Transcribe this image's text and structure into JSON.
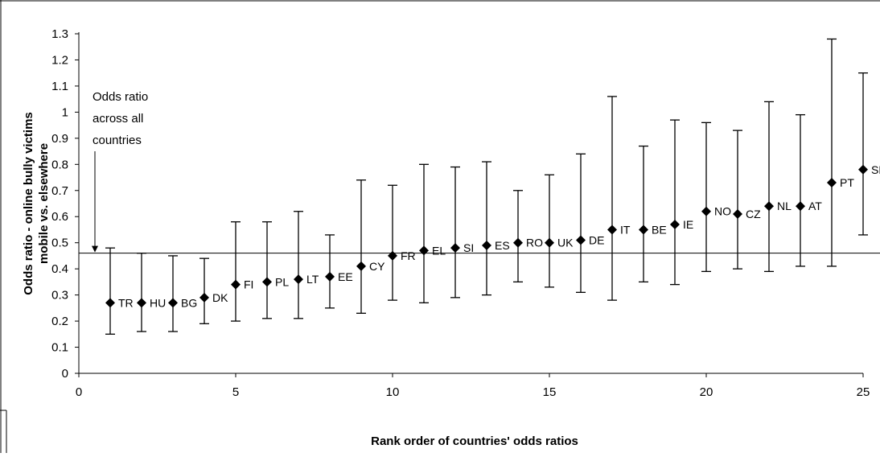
{
  "chart_data": {
    "type": "scatter",
    "title": "",
    "xlabel": "Rank order of countries' odds ratios",
    "ylabel_line1": "Odds ratio - online bully victims",
    "ylabel_line2": "mobile vs. elsewhere",
    "xlim": [
      0,
      25
    ],
    "ylim": [
      0,
      1.3
    ],
    "xticks": [
      "0",
      "5",
      "10",
      "15",
      "20",
      "25"
    ],
    "yticks": [
      "0",
      "0.1",
      "0.2",
      "0.3",
      "0.4",
      "0.5",
      "0.6",
      "0.7",
      "0.8",
      "0.9",
      "1",
      "1.1",
      "1.2",
      "1.3"
    ],
    "grid": false,
    "reference_line": 0.46,
    "annotation_lines": [
      "Odds ratio",
      "across all",
      "countries"
    ],
    "points": [
      {
        "rank": 1,
        "label": "TR",
        "value": 0.27,
        "low": 0.15,
        "high": 0.48
      },
      {
        "rank": 2,
        "label": "HU",
        "value": 0.27,
        "low": 0.16,
        "high": 0.46
      },
      {
        "rank": 3,
        "label": "BG",
        "value": 0.27,
        "low": 0.16,
        "high": 0.45
      },
      {
        "rank": 4,
        "label": "DK",
        "value": 0.29,
        "low": 0.19,
        "high": 0.44
      },
      {
        "rank": 5,
        "label": "FI",
        "value": 0.34,
        "low": 0.2,
        "high": 0.58
      },
      {
        "rank": 6,
        "label": "PL",
        "value": 0.35,
        "low": 0.21,
        "high": 0.58
      },
      {
        "rank": 7,
        "label": "LT",
        "value": 0.36,
        "low": 0.21,
        "high": 0.62
      },
      {
        "rank": 8,
        "label": "EE",
        "value": 0.37,
        "low": 0.25,
        "high": 0.53
      },
      {
        "rank": 9,
        "label": "CY",
        "value": 0.41,
        "low": 0.23,
        "high": 0.74
      },
      {
        "rank": 10,
        "label": "FR",
        "value": 0.45,
        "low": 0.28,
        "high": 0.72
      },
      {
        "rank": 11,
        "label": "EL",
        "value": 0.47,
        "low": 0.27,
        "high": 0.8
      },
      {
        "rank": 12,
        "label": "SI",
        "value": 0.48,
        "low": 0.29,
        "high": 0.79
      },
      {
        "rank": 13,
        "label": "ES",
        "value": 0.49,
        "low": 0.3,
        "high": 0.81
      },
      {
        "rank": 14,
        "label": "RO",
        "value": 0.5,
        "low": 0.35,
        "high": 0.7
      },
      {
        "rank": 15,
        "label": "UK",
        "value": 0.5,
        "low": 0.33,
        "high": 0.76
      },
      {
        "rank": 16,
        "label": "DE",
        "value": 0.51,
        "low": 0.31,
        "high": 0.84
      },
      {
        "rank": 17,
        "label": "IT",
        "value": 0.55,
        "low": 0.28,
        "high": 1.06
      },
      {
        "rank": 18,
        "label": "BE",
        "value": 0.55,
        "low": 0.35,
        "high": 0.87
      },
      {
        "rank": 19,
        "label": "IE",
        "value": 0.57,
        "low": 0.34,
        "high": 0.97
      },
      {
        "rank": 20,
        "label": "NO",
        "value": 0.62,
        "low": 0.39,
        "high": 0.96
      },
      {
        "rank": 21,
        "label": "CZ",
        "value": 0.61,
        "low": 0.4,
        "high": 0.93
      },
      {
        "rank": 22,
        "label": "NL",
        "value": 0.64,
        "low": 0.39,
        "high": 1.04
      },
      {
        "rank": 23,
        "label": "AT",
        "value": 0.64,
        "low": 0.41,
        "high": 0.99
      },
      {
        "rank": 24,
        "label": "PT",
        "value": 0.73,
        "low": 0.41,
        "high": 1.28
      },
      {
        "rank": 25,
        "label": "SE",
        "value": 0.78,
        "low": 0.53,
        "high": 1.15
      }
    ]
  }
}
